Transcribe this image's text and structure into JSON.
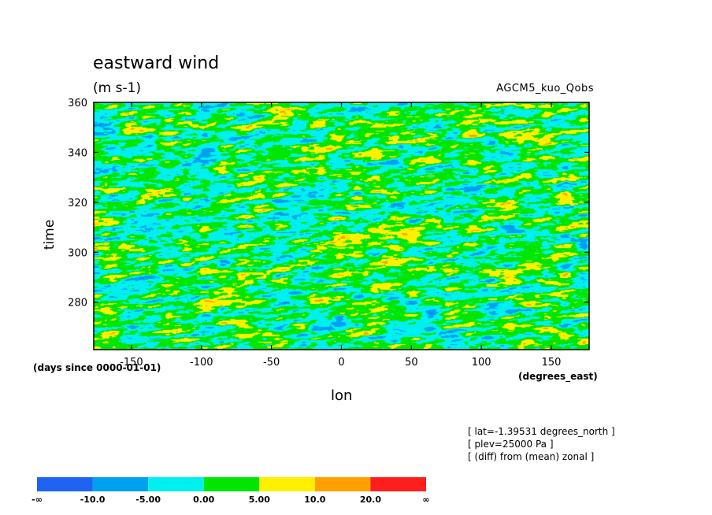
{
  "chart_data": {
    "type": "heatmap",
    "title": "eastward wind",
    "units": "(m s-1)",
    "model": "AGCM5_kuo_Qobs",
    "xlabel": "lon",
    "ylabel": "time",
    "x_units": "(degrees_east)",
    "y_units": "(days since 0000-01-01)",
    "xlim": [
      -177,
      177
    ],
    "ylim": [
      261,
      360
    ],
    "x_ticks": [
      -150,
      -100,
      -50,
      0,
      50,
      100,
      150
    ],
    "y_ticks": [
      280,
      300,
      320,
      340,
      360
    ],
    "x_tick_labels": [
      "-150",
      "-100",
      "-50",
      "0",
      "50",
      "100",
      "150"
    ],
    "y_tick_labels": [
      "280",
      "300",
      "320",
      "340",
      "360"
    ],
    "info": [
      "[ lat=-1.39531 degrees_north ]",
      "[ plev=25000 Pa ]",
      "[ (diff) from (mean) zonal ]"
    ],
    "levels_labels": [
      "-∞",
      "-10.0",
      "-5.00",
      "0.00",
      "5.00",
      "10.0",
      "20.0",
      "∞"
    ],
    "colors": [
      "#1e64f0",
      "#00a0f0",
      "#00f0f0",
      "#00e600",
      "#fff000",
      "#ffa000",
      "#ff1e1e"
    ],
    "grid": false
  }
}
